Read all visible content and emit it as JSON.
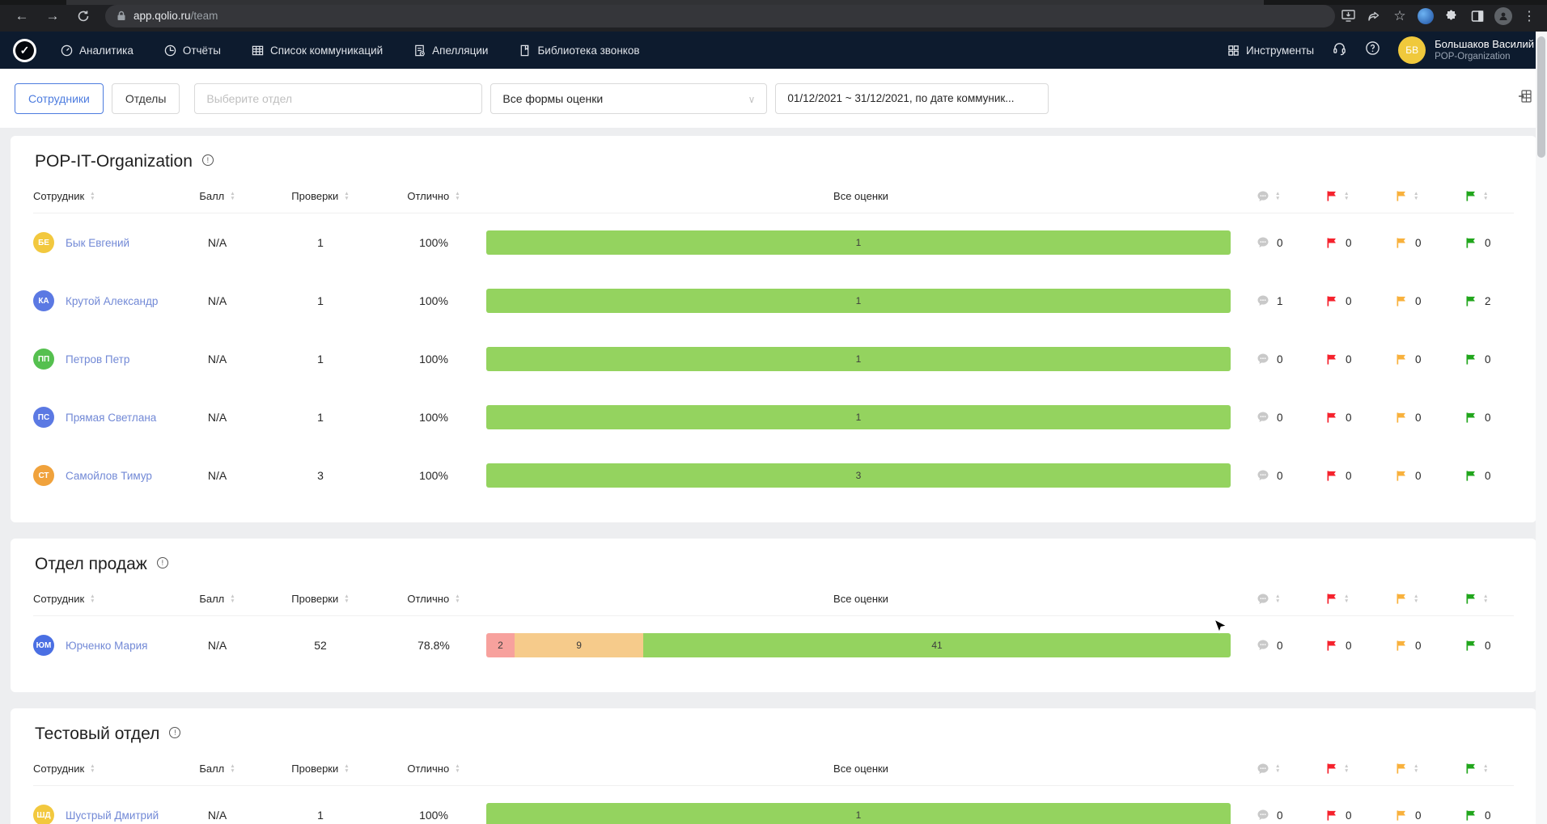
{
  "browser": {
    "url_host": "app.qolio.ru",
    "url_path": "/team"
  },
  "nav": {
    "logo_glyph": "✓",
    "menu": [
      {
        "label": "Аналитика",
        "icon": "analytics-icon"
      },
      {
        "label": "Отчёты",
        "icon": "reports-icon"
      },
      {
        "label": "Список коммуникаций",
        "icon": "communications-list-icon"
      },
      {
        "label": "Апелляции",
        "icon": "appeals-icon"
      },
      {
        "label": "Библиотека звонков",
        "icon": "call-library-icon"
      }
    ],
    "tools_label": "Инструменты",
    "user": {
      "initials": "БВ",
      "name": "Большаков Василий",
      "org": "POP-Organization"
    }
  },
  "filters": {
    "tab_employees": "Сотрудники",
    "tab_departments": "Отделы",
    "department_placeholder": "Выберите отдел",
    "forms_value": "Все формы оценки",
    "date_range": "01/12/2021 ~ 31/12/2021, по дате коммуник..."
  },
  "table_headers": {
    "employee": "Сотрудник",
    "score": "Балл",
    "reviews": "Проверки",
    "excellent": "Отлично",
    "all_scores": "Все оценки"
  },
  "colors": {
    "navy": "#0d1b2e",
    "accent_blue": "#4d7cdf",
    "flag_red": "#f5222d",
    "flag_orange": "#f8b13c",
    "flag_green": "#21a61c",
    "bar_green": "#94d35f",
    "bar_orange": "#f6cb8b",
    "bar_red": "#f7a19d"
  },
  "cards": [
    {
      "title": "POP-IT-Organization",
      "rows": [
        {
          "initials": "БЕ",
          "avatar_color": "#f2c83e",
          "name": "Бык Евгений",
          "score": "N/A",
          "reviews": "1",
          "excellent": "100%",
          "bar": [
            {
              "label": "1",
              "color": "bar_green",
              "pct": 100
            }
          ],
          "comments": "0",
          "red": "0",
          "orange": "0",
          "green": "0"
        },
        {
          "initials": "КА",
          "avatar_color": "#5b79e3",
          "name": "Крутой Александр",
          "score": "N/A",
          "reviews": "1",
          "excellent": "100%",
          "bar": [
            {
              "label": "1",
              "color": "bar_green",
              "pct": 100
            }
          ],
          "comments": "1",
          "red": "0",
          "orange": "0",
          "green": "2"
        },
        {
          "initials": "ПП",
          "avatar_color": "#55c04f",
          "name": "Петров Петр",
          "score": "N/A",
          "reviews": "1",
          "excellent": "100%",
          "bar": [
            {
              "label": "1",
              "color": "bar_green",
              "pct": 100
            }
          ],
          "comments": "0",
          "red": "0",
          "orange": "0",
          "green": "0"
        },
        {
          "initials": "ПС",
          "avatar_color": "#5b79e3",
          "name": "Прямая Светлана",
          "score": "N/A",
          "reviews": "1",
          "excellent": "100%",
          "bar": [
            {
              "label": "1",
              "color": "bar_green",
              "pct": 100
            }
          ],
          "comments": "0",
          "red": "0",
          "orange": "0",
          "green": "0"
        },
        {
          "initials": "СТ",
          "avatar_color": "#f0a23c",
          "name": "Самойлов Тимур",
          "score": "N/A",
          "reviews": "3",
          "excellent": "100%",
          "bar": [
            {
              "label": "3",
              "color": "bar_green",
              "pct": 100
            }
          ],
          "comments": "0",
          "red": "0",
          "orange": "0",
          "green": "0"
        }
      ]
    },
    {
      "title": "Отдел продаж",
      "rows": [
        {
          "initials": "ЮМ",
          "avatar_color": "#4a6fe3",
          "name": "Юрченко Мария",
          "score": "N/A",
          "reviews": "52",
          "excellent": "78.8%",
          "bar": [
            {
              "label": "2",
              "color": "bar_red",
              "pct": 3.8
            },
            {
              "label": "9",
              "color": "bar_orange",
              "pct": 17.3
            },
            {
              "label": "41",
              "color": "bar_green",
              "pct": 78.9
            }
          ],
          "comments": "0",
          "red": "0",
          "orange": "0",
          "green": "0"
        }
      ]
    },
    {
      "title": "Тестовый отдел",
      "rows": [
        {
          "initials": "ШД",
          "avatar_color": "#f2c83e",
          "name": "Шустрый Дмитрий",
          "score": "N/A",
          "reviews": "1",
          "excellent": "100%",
          "bar": [
            {
              "label": "1",
              "color": "bar_green",
              "pct": 100
            }
          ],
          "comments": "0",
          "red": "0",
          "orange": "0",
          "green": "0"
        }
      ]
    }
  ]
}
